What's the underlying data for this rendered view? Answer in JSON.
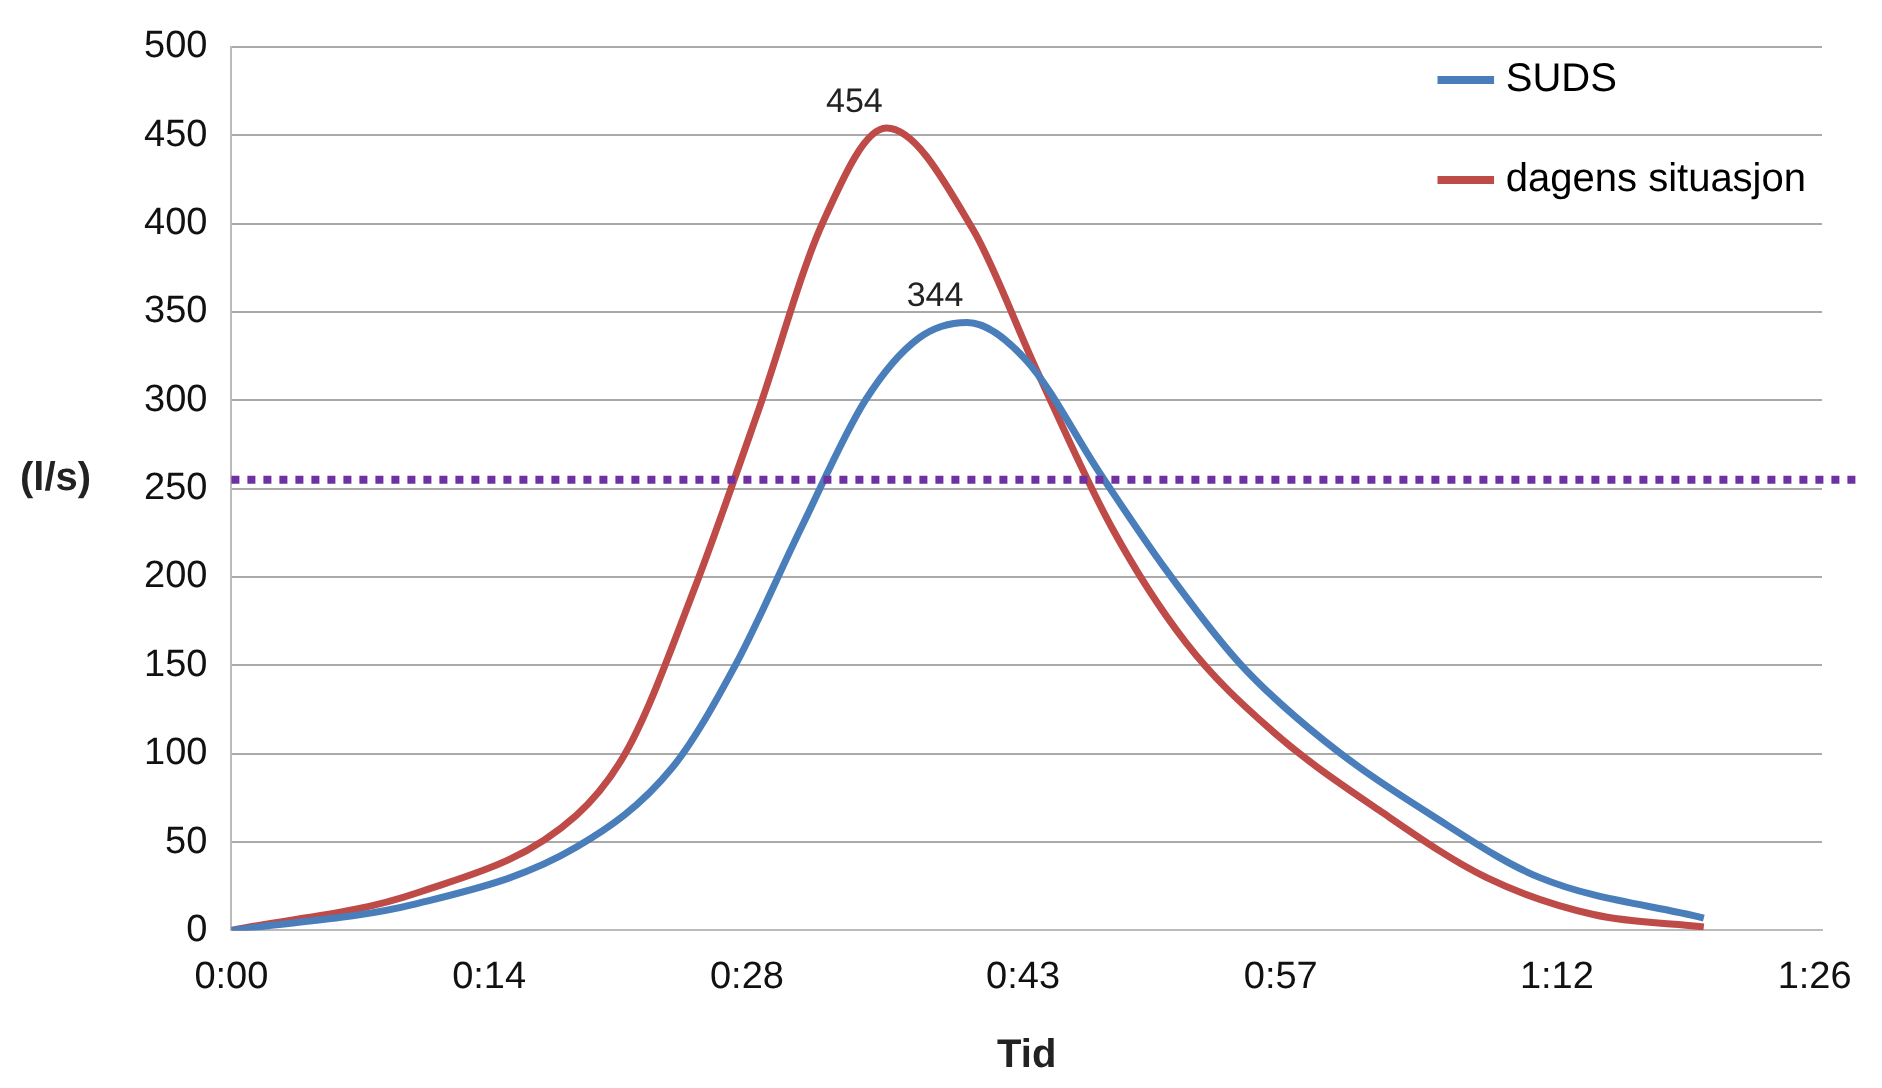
{
  "chart_data": {
    "type": "line",
    "xlabel": "Tid",
    "ylabel": "(l/s)",
    "xlim": [
      0,
      1.44
    ],
    "xticks": [
      {
        "value": 0,
        "label": "0:00"
      },
      {
        "value": 0.2333,
        "label": "0:14"
      },
      {
        "value": 0.4667,
        "label": "0:28"
      },
      {
        "value": 0.7167,
        "label": "0:43"
      },
      {
        "value": 0.95,
        "label": "0:57"
      },
      {
        "value": 1.2,
        "label": "1:12"
      },
      {
        "value": 1.4333,
        "label": "1:26"
      }
    ],
    "ylim": [
      0,
      500
    ],
    "yticks": [
      0,
      50,
      100,
      150,
      200,
      250,
      300,
      350,
      400,
      450,
      500
    ],
    "grid": "y",
    "legend": "top right",
    "marker": "none",
    "line_style": "solid",
    "series": [
      {
        "name": "SUDS",
        "color": "#4a7ebb",
        "x": [
          0,
          0.167,
          0.312,
          0.399,
          0.457,
          0.516,
          0.574,
          0.622,
          0.666,
          0.719,
          0.787,
          0.845,
          0.913,
          0.99,
          1.087,
          1.184,
          1.333
        ],
        "values": [
          0,
          15,
          47,
          92,
          151,
          228,
          300,
          335,
          344,
          323,
          258,
          205,
          151,
          107,
          65,
          30,
          7
        ]
      },
      {
        "name": "dagens situasjon",
        "color": "#be4b48",
        "x": [
          0,
          0.167,
          0.312,
          0.36,
          0.419,
          0.477,
          0.535,
          0.593,
          0.671,
          0.729,
          0.797,
          0.864,
          0.942,
          1.039,
          1.136,
          1.233,
          1.333
        ],
        "values": [
          0,
          21,
          65,
          104,
          193,
          294,
          400,
          454,
          397,
          317,
          228,
          163,
          113,
          68,
          30,
          9,
          2
        ]
      }
    ],
    "ref_lines": [
      {
        "axis": "y",
        "value": 255,
        "color": "#7030a0",
        "line_style": "dotted"
      }
    ],
    "annotations": [
      {
        "text": "454",
        "x": 0.593,
        "y": 454
      },
      {
        "text": "344",
        "x": 0.666,
        "y": 344
      }
    ]
  }
}
